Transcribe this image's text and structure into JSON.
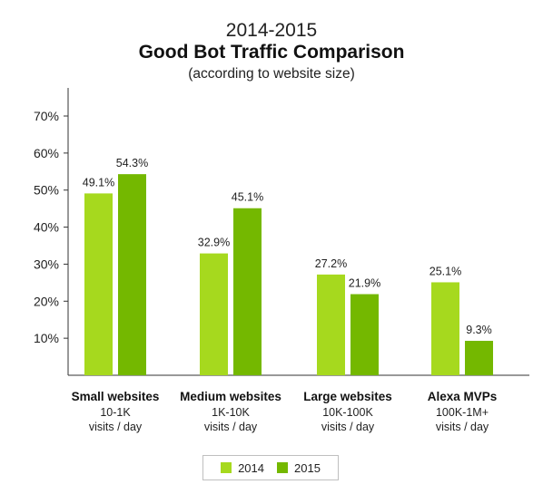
{
  "chart_data": {
    "type": "bar",
    "title_line1": "2014-2015",
    "title": "Good Bot Traffic Comparison",
    "subtitle": "(according to website size)",
    "categories": [
      {
        "name": "Small websites",
        "line2": "10-1K",
        "line3": "visits / day"
      },
      {
        "name": "Medium websites",
        "line2": "1K-10K",
        "line3": "visits / day"
      },
      {
        "name": "Large websites",
        "line2": "10K-100K",
        "line3": "visits / day"
      },
      {
        "name": "Alexa MVPs",
        "line2": "100K-1M+",
        "line3": "visits / day"
      }
    ],
    "series": [
      {
        "name": "2014",
        "color": "#a6d91e",
        "values": [
          49.1,
          32.9,
          27.2,
          25.1
        ],
        "labels": [
          "49.1%",
          "32.9%",
          "27.2%",
          "25.1%"
        ]
      },
      {
        "name": "2015",
        "color": "#74b800",
        "values": [
          54.3,
          45.1,
          21.9,
          9.3
        ],
        "labels": [
          "54.3%",
          "45.1%",
          "21.9%",
          "9.3%"
        ]
      }
    ],
    "yticks": [
      "10%",
      "20%",
      "30%",
      "40%",
      "50%",
      "60%",
      "70%"
    ],
    "ytick_values": [
      10,
      20,
      30,
      40,
      50,
      60,
      70
    ],
    "ylim": [
      0,
      70
    ],
    "grid": false,
    "legend_position": "bottom"
  }
}
